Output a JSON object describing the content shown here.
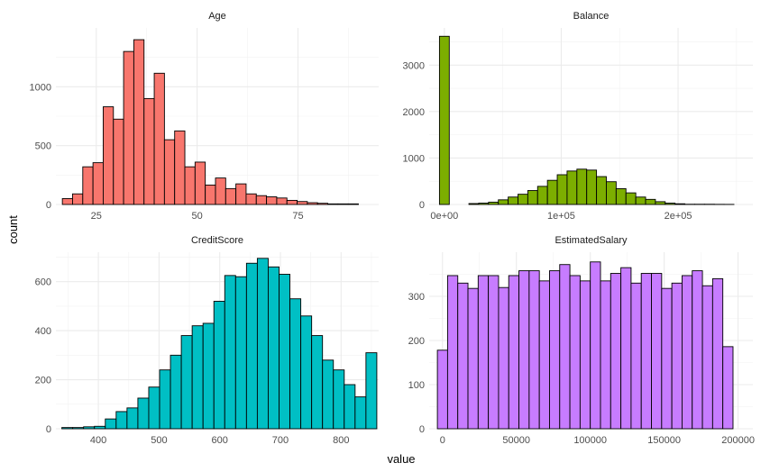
{
  "chart_data": {
    "type": "bar",
    "xlabel": "value",
    "ylabel": "count",
    "grid": true,
    "facets": [
      {
        "title": "Age",
        "color": "#F8766D",
        "xlim": [
          15,
          95
        ],
        "ylim": [
          0,
          1500
        ],
        "xticks": [
          25,
          50,
          75
        ],
        "xtick_labels": [
          "25",
          "50",
          "75"
        ],
        "yticks": [
          0,
          500,
          1000
        ],
        "ytick_labels": [
          "0",
          "500",
          "1000"
        ],
        "bin_start": 16.6,
        "bin_width": 2.53,
        "counts": [
          50,
          90,
          320,
          355,
          830,
          725,
          1300,
          1400,
          900,
          1115,
          550,
          625,
          320,
          360,
          165,
          225,
          135,
          175,
          90,
          75,
          65,
          55,
          35,
          25,
          15,
          10,
          5,
          5,
          5
        ]
      },
      {
        "title": "Balance",
        "color": "#7CAE00",
        "xlim": [
          -13000,
          264000
        ],
        "ylim": [
          0,
          3800
        ],
        "xticks": [
          0,
          100000,
          200000
        ],
        "xtick_labels": [
          "0e+00",
          "1e+05",
          "2e+05"
        ],
        "yticks": [
          0,
          1000,
          2000,
          3000
        ],
        "ytick_labels": [
          "0",
          "1000",
          "2000",
          "3000"
        ],
        "bin_start": -4200,
        "bin_width": 8400,
        "counts": [
          3620,
          0,
          0,
          20,
          30,
          50,
          100,
          160,
          220,
          300,
          390,
          520,
          640,
          720,
          760,
          740,
          600,
          490,
          340,
          250,
          160,
          110,
          60,
          30,
          15,
          5,
          5,
          5,
          3,
          2
        ]
      },
      {
        "title": "CreditScore",
        "color": "#00BFC4",
        "xlim": [
          330,
          862
        ],
        "ylim": [
          0,
          720
        ],
        "xticks": [
          400,
          500,
          600,
          700,
          800
        ],
        "xtick_labels": [
          "400",
          "500",
          "600",
          "700",
          "800"
        ],
        "yticks": [
          0,
          200,
          400,
          600
        ],
        "ytick_labels": [
          "0",
          "200",
          "400",
          "600"
        ],
        "bin_start": 339.8,
        "bin_width": 17.9,
        "counts": [
          5,
          5,
          8,
          10,
          40,
          70,
          85,
          125,
          170,
          240,
          300,
          380,
          420,
          430,
          520,
          625,
          620,
          675,
          695,
          660,
          630,
          530,
          460,
          380,
          280,
          240,
          180,
          130,
          310
        ]
      },
      {
        "title": "EstimatedSalary",
        "color": "#C77CFF",
        "xlim": [
          -9000,
          210000
        ],
        "ylim": [
          0,
          400
        ],
        "xticks": [
          0,
          50000,
          100000,
          150000,
          200000
        ],
        "xtick_labels": [
          "0",
          "50000",
          "100000",
          "150000",
          "200000"
        ],
        "yticks": [
          0,
          100,
          200,
          300
        ],
        "ytick_labels": [
          "0",
          "100",
          "200",
          "300"
        ],
        "bin_start": -3448,
        "bin_width": 6897,
        "counts": [
          178,
          347,
          330,
          318,
          347,
          347,
          320,
          347,
          358,
          358,
          335,
          358,
          372,
          347,
          335,
          378,
          335,
          352,
          365,
          330,
          352,
          352,
          318,
          330,
          347,
          358,
          324,
          340,
          186
        ]
      }
    ]
  }
}
